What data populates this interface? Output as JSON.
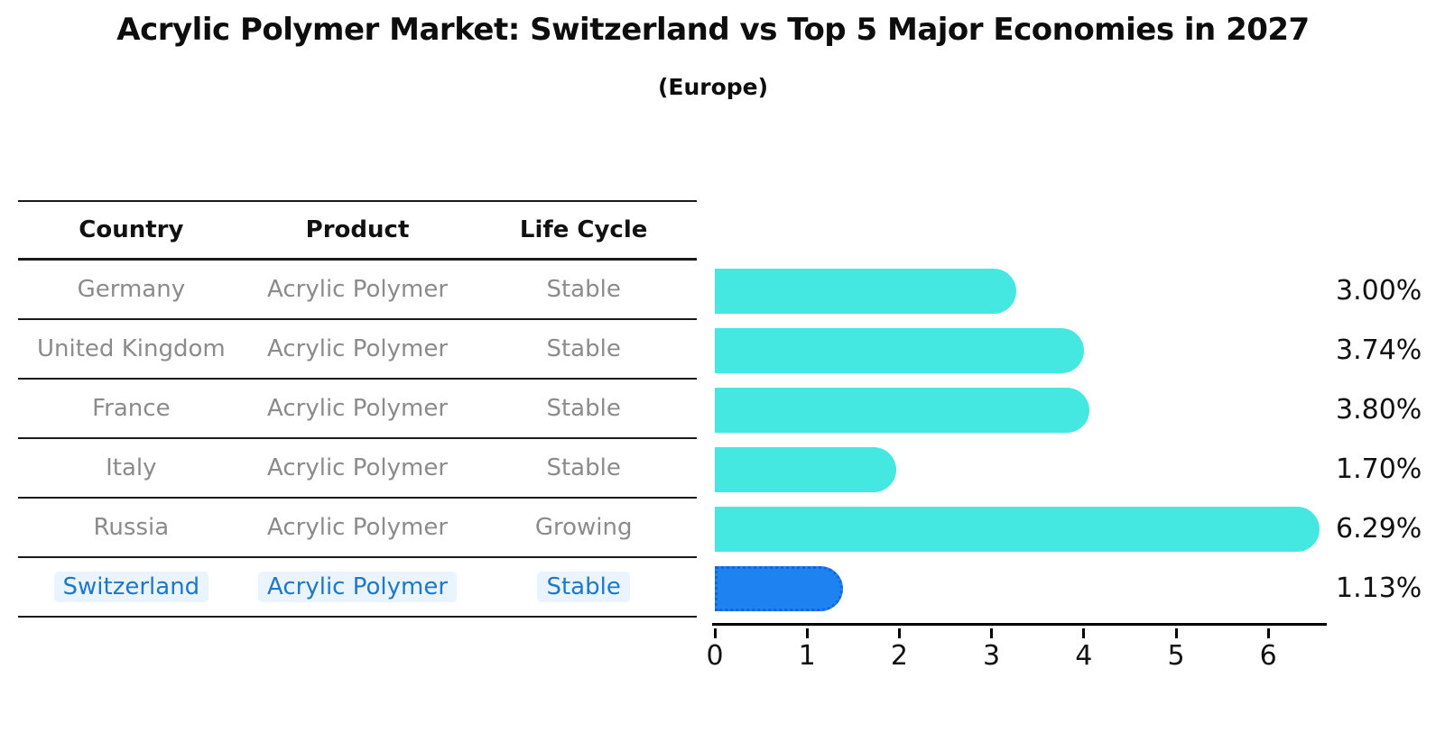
{
  "title": "Acrylic Polymer Market: Switzerland vs Top 5 Major Economies in 2027",
  "subtitle": "(Europe)",
  "table": {
    "headers": [
      "Country",
      "Product",
      "Life Cycle"
    ],
    "rows": [
      {
        "country": "Germany",
        "product": "Acrylic Polymer",
        "life_cycle": "Stable",
        "highlighted": false
      },
      {
        "country": "United Kingdom",
        "product": "Acrylic Polymer",
        "life_cycle": "Stable",
        "highlighted": false
      },
      {
        "country": "France",
        "product": "Acrylic Polymer",
        "life_cycle": "Stable",
        "highlighted": false
      },
      {
        "country": "Italy",
        "product": "Acrylic Polymer",
        "life_cycle": "Stable",
        "highlighted": false
      },
      {
        "country": "Russia",
        "product": "Acrylic Polymer",
        "life_cycle": "Growing",
        "highlighted": false
      },
      {
        "country": "Switzerland",
        "product": "Acrylic Polymer",
        "life_cycle": "Stable",
        "highlighted": true
      }
    ]
  },
  "chart_data": {
    "type": "bar",
    "orientation": "horizontal",
    "title": "Acrylic Polymer Market: Switzerland vs Top 5 Major Economies in 2027",
    "subtitle": "(Europe)",
    "categories": [
      "Germany",
      "United Kingdom",
      "France",
      "Italy",
      "Russia",
      "Switzerland"
    ],
    "values": [
      3.0,
      3.74,
      3.8,
      1.7,
      6.29,
      1.13
    ],
    "value_labels": [
      "3.00%",
      "3.74%",
      "3.80%",
      "1.70%",
      "6.29%",
      "1.13%"
    ],
    "xlabel": "",
    "ylabel": "",
    "xlim": [
      0,
      6.6
    ],
    "xticks": [
      0,
      1,
      2,
      3,
      4,
      5,
      6
    ],
    "xtick_labels": [
      "0",
      "1",
      "2",
      "3",
      "4",
      "5",
      "6"
    ],
    "grid": false,
    "legend": null,
    "bar_color": "#45e8e0",
    "highlight_color": "#1e82f0",
    "highlight_border_color": "#1565d8",
    "highlight_index": 5
  },
  "colors": {
    "background": "#ffffff",
    "table_line": "#1a1a1a",
    "table_text": "#8b8b8b",
    "header_text": "#111111",
    "highlight_text": "#1f77c8",
    "axis_line": "#000000"
  }
}
